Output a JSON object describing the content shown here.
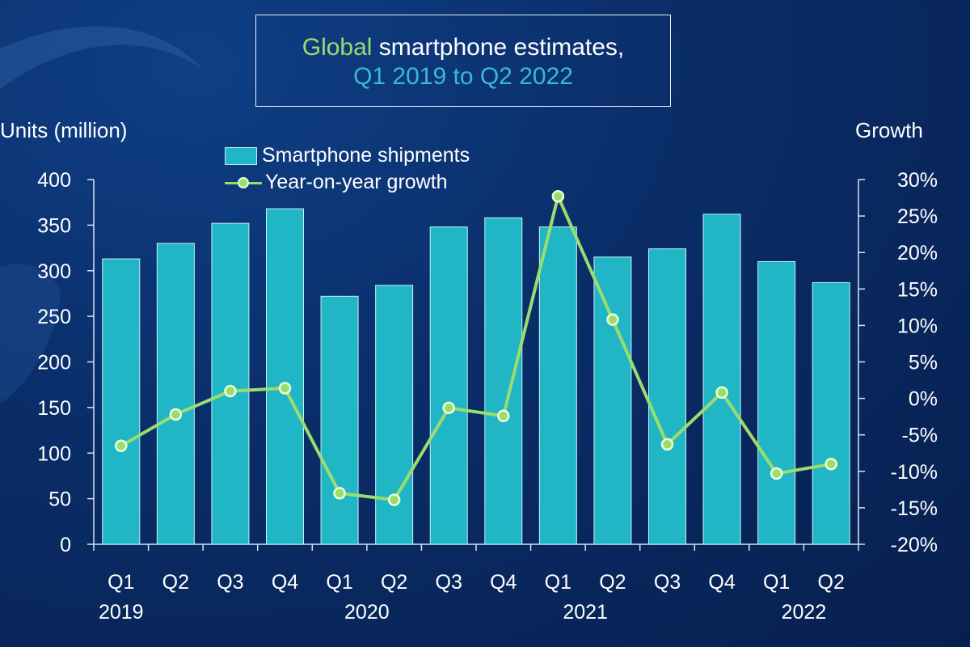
{
  "title": {
    "line1_keyword": "Global",
    "line1_rest": " smartphone estimates,",
    "line2": "Q1 2019 to Q2 2022"
  },
  "colors": {
    "bar": "#20b6c6",
    "line": "#9bdc6f",
    "keyword": "#9bdc6f",
    "subtitle": "#39b9d3"
  },
  "chart_data": {
    "type": "bar",
    "ylabel": "Units (million)",
    "y2label": "Growth",
    "ylim": [
      0,
      400
    ],
    "y_ticks": [
      0,
      50,
      100,
      150,
      200,
      250,
      300,
      350,
      400
    ],
    "y2lim": [
      -20,
      30
    ],
    "y2_ticks": [
      "-20%",
      "-15%",
      "-10%",
      "-5%",
      "0%",
      "5%",
      "10%",
      "15%",
      "20%",
      "25%",
      "30%"
    ],
    "categories": [
      "Q1",
      "Q2",
      "Q3",
      "Q4",
      "Q1",
      "Q2",
      "Q3",
      "Q4",
      "Q1",
      "Q2",
      "Q3",
      "Q4",
      "Q1",
      "Q2"
    ],
    "years": [
      {
        "label": "2019",
        "index": 0
      },
      {
        "label": "2020",
        "index": 4
      },
      {
        "label": "2021",
        "index": 8
      },
      {
        "label": "2022",
        "index": 12
      }
    ],
    "legend_position": "top-left",
    "series": [
      {
        "name": "Smartphone shipments",
        "type": "bar",
        "axis": "left",
        "values": [
          313,
          330,
          352,
          368,
          272,
          284,
          348,
          358,
          348,
          315,
          324,
          362,
          310,
          287
        ]
      },
      {
        "name": "Year-on-year growth",
        "type": "line",
        "axis": "right",
        "unit": "%",
        "values": [
          -6.5,
          -2.2,
          1.0,
          1.4,
          -13.0,
          -13.9,
          -1.3,
          -2.4,
          27.7,
          10.8,
          -6.3,
          0.8,
          -10.3,
          -9.0
        ]
      }
    ]
  }
}
